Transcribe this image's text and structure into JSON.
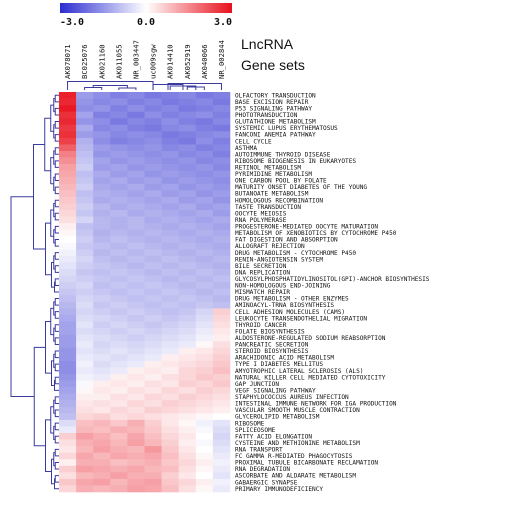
{
  "chart_data": {
    "type": "heatmap",
    "title": "",
    "legend": {
      "min_label": "-3.0",
      "mid_label": "0.0",
      "max_label": "3.0",
      "min_color": "#2b2bd0",
      "mid_color": "#ffffff",
      "max_color": "#e8101c"
    },
    "axis_titles": {
      "columns": "LncRNA",
      "rows": "Gene sets"
    },
    "columns": [
      "AK078071",
      "BC025076",
      "AK021160",
      "AK011055",
      "NR_003447",
      "uc009sgw",
      "AK014410",
      "AK052919",
      "AK040066",
      "NR_002844"
    ],
    "rows": [
      "OLFACTORY TRANSDUCTION",
      "BASE EXCISION REPAIR",
      "P53 SIGNALING PATHWAY",
      "PHOTOTRANSDUCTION",
      "GLUTATHIONE METABOLISM",
      "SYSTEMIC LUPUS ERYTHEMATOSUS",
      "FANCONI ANEMIA PATHWAY",
      "CELL CYCLE",
      "ASTHMA",
      "AUTOIMMUNE THYROID DISEASE",
      "RIBOSOME BIOGENESIS IN EUKARYOTES",
      "RETINOL METABOLISM",
      "PYRIMIDINE METABOLISM",
      "ONE CARBON POOL BY FOLATE",
      "MATURITY ONSET DIABETES OF THE YOUNG",
      "BUTANOATE METABOLISM",
      "HOMOLOGOUS RECOMBINATION",
      "TASTE TRANSDUCTION",
      "OOCYTE MEIOSIS",
      "RNA POLYMERASE",
      "PROGESTERONE-MEDIATED OOCYTE MATURATION",
      "METABOLISM OF XENOBIOTICS BY CYTOCHROME P450",
      "FAT DIGESTION AND ABSORPTION",
      "ALLOGRAFT REJECTION",
      "DRUG METABOLISM - CYTOCHROME P450",
      "RENIN-ANGIOTENSIN SYSTEM",
      "BILE SECRETION",
      "DNA REPLICATION",
      "GLYCOSYLPHOSPHATIDYLINOSITOL(GPI)-ANCHOR BIOSYNTHESIS",
      "NON-HOMOLOGOUS END-JOINING",
      "MISMATCH REPAIR",
      "DRUG METABOLISM - OTHER ENZYMES",
      "AMINOACYL-TRNA BIOSYNTHESIS",
      "CELL ADHESION MOLECULES (CAMS)",
      "LEUKOCYTE TRANSENDOTHELIAL MIGRATION",
      "THYROID CANCER",
      "FOLATE BIOSYNTHESIS",
      "ALDOSTERONE-REGULATED SODIUM REABSORPTION",
      "PANCREATIC SECRETION",
      "STEROID BIOSYNTHESIS",
      "ARACHIDONIC ACID METABOLISM",
      "TYPE I DIABETES MELLITUS",
      "AMYOTROPHIC LATERAL SCLEROSIS (ALS)",
      "NATURAL KILLER CELL MEDIATED CYTOTOXICITY",
      "GAP JUNCTION",
      "VEGF SIGNALING PATHWAY",
      "STAPHYLOCOCCUS AUREUS INFECTION",
      "INTESTINAL IMMUNE NETWORK FOR IGA PRODUCTION",
      "VASCULAR SMOOTH MUSCLE CONTRACTION",
      "GLYCEROLIPID METABOLISM",
      "RIBOSOME",
      "SPLICEOSOME",
      "FATTY ACID ELONGATION",
      "CYSTEINE AND METHIONINE METABOLISM",
      "RNA TRANSPORT",
      "FC GAMMA R-MEDIATED PHAGOCYTOSIS",
      "PROXIMAL TUBULE BICARBONATE RECLAMATION",
      "RNA DEGRADATION",
      "ASCORBATE AND ALDARATE METABOLISM",
      "GABAERGIC SYNAPSE",
      "PRIMARY IMMUNODEFICIENCY"
    ],
    "values": [
      [
        2.8,
        -1.4,
        -1.6,
        -1.8,
        -1.7,
        -1.9,
        -1.8,
        -1.7,
        -1.9,
        -1.8
      ],
      [
        2.7,
        -1.5,
        -1.7,
        -1.6,
        -1.8,
        -1.7,
        -1.9,
        -1.8,
        -1.7,
        -1.9
      ],
      [
        2.9,
        -1.6,
        -1.5,
        -1.8,
        -1.6,
        -1.8,
        -1.7,
        -1.9,
        -1.8,
        -1.7
      ],
      [
        2.6,
        -1.3,
        -1.8,
        -1.7,
        -1.9,
        -1.6,
        -1.8,
        -1.7,
        -1.6,
        -1.8
      ],
      [
        2.7,
        -1.5,
        -1.6,
        -1.9,
        -1.7,
        -1.8,
        -1.6,
        -1.8,
        -1.9,
        -1.7
      ],
      [
        2.5,
        -1.2,
        -1.7,
        -1.6,
        -1.8,
        -1.9,
        -1.7,
        -1.6,
        -1.8,
        -1.9
      ],
      [
        2.6,
        -1.4,
        -1.5,
        -1.7,
        -1.6,
        -1.7,
        -1.9,
        -1.8,
        -1.7,
        -1.6
      ],
      [
        2.4,
        -1.1,
        -1.6,
        -1.8,
        -1.7,
        -1.6,
        -1.8,
        -1.9,
        -1.6,
        -1.8
      ],
      [
        2.0,
        -1.0,
        -1.4,
        -1.5,
        -1.6,
        -1.5,
        -1.7,
        -1.6,
        -1.8,
        -1.7
      ],
      [
        1.6,
        -0.9,
        -1.5,
        -1.4,
        -1.5,
        -1.6,
        -1.5,
        -1.7,
        -1.6,
        -1.8
      ],
      [
        1.4,
        -0.8,
        -1.3,
        -1.5,
        -1.4,
        -1.5,
        -1.6,
        -1.5,
        -1.7,
        -1.6
      ],
      [
        1.2,
        -0.7,
        -1.4,
        -1.3,
        -1.5,
        -1.4,
        -1.5,
        -1.6,
        -1.5,
        -1.7
      ],
      [
        1.1,
        -0.9,
        -1.2,
        -1.4,
        -1.3,
        -1.5,
        -1.4,
        -1.5,
        -1.6,
        -1.5
      ],
      [
        1.0,
        -0.8,
        -1.3,
        -1.2,
        -1.4,
        -1.3,
        -1.5,
        -1.4,
        -1.5,
        -1.6
      ],
      [
        0.9,
        -0.7,
        -1.2,
        -1.3,
        -1.2,
        -1.4,
        -1.3,
        -1.5,
        -1.4,
        -1.5
      ],
      [
        0.8,
        -0.9,
        -1.1,
        -1.2,
        -1.3,
        -1.2,
        -1.4,
        -1.3,
        -1.5,
        -1.4
      ],
      [
        0.7,
        -0.8,
        -1.2,
        -1.1,
        -1.2,
        -1.3,
        -1.2,
        -1.4,
        -1.3,
        -1.5
      ],
      [
        0.6,
        -0.7,
        -1.0,
        -1.2,
        -1.1,
        -1.2,
        -1.3,
        -1.2,
        -1.4,
        -1.3
      ],
      [
        0.5,
        -0.8,
        -1.1,
        -1.0,
        -1.2,
        -1.1,
        -1.2,
        -1.3,
        -1.2,
        -1.4
      ],
      [
        0.4,
        -0.6,
        -1.0,
        -1.1,
        -1.0,
        -1.2,
        -1.1,
        -1.2,
        -1.3,
        -1.2
      ],
      [
        0.2,
        -0.9,
        -1.0,
        -1.1,
        -1.0,
        -1.1,
        -1.2,
        -1.1,
        -1.2,
        -1.3
      ],
      [
        0.1,
        -0.8,
        -1.1,
        -1.0,
        -1.1,
        -1.0,
        -1.1,
        -1.2,
        -1.1,
        -1.2
      ],
      [
        0.0,
        -0.7,
        -1.0,
        -0.9,
        -1.0,
        -1.1,
        -1.0,
        -1.1,
        -1.2,
        -1.1
      ],
      [
        -0.1,
        -0.8,
        -0.9,
        -1.0,
        -0.9,
        -1.0,
        -1.1,
        -1.0,
        -1.1,
        -1.2
      ],
      [
        -0.2,
        -0.7,
        -1.0,
        -0.9,
        -1.0,
        -0.9,
        -1.0,
        -1.1,
        -1.0,
        -1.1
      ],
      [
        -0.3,
        -0.6,
        -0.9,
        -1.0,
        -0.9,
        -1.0,
        -0.9,
        -1.0,
        -1.1,
        -1.0
      ],
      [
        -0.4,
        -0.7,
        -0.8,
        -0.9,
        -1.0,
        -0.9,
        -1.0,
        -0.9,
        -1.0,
        -1.1
      ],
      [
        -0.5,
        -0.8,
        -0.9,
        -0.8,
        -0.9,
        -1.0,
        -0.9,
        -1.0,
        -0.9,
        -1.0
      ],
      [
        -0.6,
        -0.7,
        -0.8,
        -0.9,
        -0.8,
        -0.9,
        -1.0,
        -0.9,
        -1.0,
        -0.9
      ],
      [
        -0.7,
        -0.6,
        -0.9,
        -0.8,
        -0.9,
        -0.8,
        -0.9,
        -1.0,
        -0.9,
        -1.0
      ],
      [
        -0.8,
        -0.7,
        -0.8,
        -0.9,
        -0.8,
        -0.9,
        -0.8,
        -0.9,
        -1.0,
        -0.9
      ],
      [
        -0.9,
        -0.6,
        -0.7,
        -0.8,
        -0.9,
        -0.8,
        -0.9,
        -0.8,
        -0.9,
        -1.0
      ],
      [
        -1.0,
        -0.5,
        -0.8,
        -0.7,
        -0.8,
        -0.9,
        -0.8,
        -0.9,
        -0.8,
        -0.9
      ],
      [
        -1.1,
        -0.6,
        -0.7,
        -0.8,
        -0.7,
        -0.8,
        -0.9,
        -0.8,
        -0.6,
        0.6
      ],
      [
        -1.2,
        -0.5,
        -0.6,
        -0.7,
        -0.8,
        -0.7,
        -0.8,
        -0.7,
        -0.5,
        0.5
      ],
      [
        -1.3,
        -0.4,
        -0.7,
        -0.6,
        -0.7,
        -0.8,
        -0.7,
        -0.6,
        -0.4,
        0.4
      ],
      [
        -1.3,
        -0.5,
        -0.6,
        -0.7,
        -0.6,
        -0.7,
        -0.6,
        -0.5,
        -0.3,
        0.3
      ],
      [
        -1.4,
        -0.4,
        -0.5,
        -0.6,
        -0.7,
        -0.6,
        -0.5,
        -0.4,
        -0.2,
        0.2
      ],
      [
        -1.4,
        -0.3,
        -0.6,
        -0.5,
        -0.6,
        -0.5,
        -0.4,
        -0.3,
        0.1,
        0.4
      ],
      [
        -1.5,
        -0.4,
        -0.5,
        -0.4,
        -0.5,
        -0.4,
        -0.3,
        0.2,
        0.3,
        0.5
      ],
      [
        -1.5,
        -0.3,
        -0.4,
        -0.5,
        -0.4,
        -0.3,
        0.2,
        0.3,
        0.4,
        0.6
      ],
      [
        -1.6,
        -0.2,
        -0.5,
        -0.4,
        -0.3,
        0.2,
        0.3,
        0.4,
        0.5,
        0.7
      ],
      [
        -1.6,
        -0.3,
        -0.4,
        -0.3,
        0.2,
        0.3,
        0.2,
        0.5,
        0.6,
        0.8
      ],
      [
        -1.5,
        -0.2,
        -0.3,
        0.2,
        0.3,
        0.2,
        0.4,
        0.5,
        0.7,
        0.6
      ],
      [
        -1.4,
        -0.1,
        0.2,
        0.3,
        0.2,
        0.4,
        0.3,
        0.6,
        0.5,
        0.7
      ],
      [
        -1.3,
        0.1,
        0.3,
        0.2,
        0.4,
        0.3,
        0.5,
        0.4,
        0.6,
        0.5
      ],
      [
        -1.2,
        0.2,
        0.2,
        0.4,
        0.3,
        0.5,
        0.4,
        0.6,
        0.5,
        0.4
      ],
      [
        -1.1,
        0.3,
        0.4,
        0.3,
        0.5,
        0.4,
        0.6,
        0.5,
        0.4,
        0.3
      ],
      [
        -1.0,
        0.4,
        0.3,
        0.5,
        0.4,
        0.6,
        0.5,
        0.4,
        0.3,
        0.2
      ],
      [
        -0.9,
        0.5,
        0.6,
        0.4,
        0.5,
        0.4,
        0.3,
        0.2,
        0.1,
        0.0
      ],
      [
        -0.5,
        0.8,
        0.9,
        0.7,
        1.0,
        0.6,
        0.3,
        0.1,
        -0.2,
        -0.4
      ],
      [
        -0.3,
        0.9,
        0.8,
        1.0,
        0.9,
        0.7,
        0.4,
        0.2,
        -0.1,
        -0.5
      ],
      [
        0.6,
        1.2,
        1.0,
        0.8,
        1.1,
        0.8,
        0.5,
        0.3,
        0.0,
        -0.6
      ],
      [
        0.4,
        1.0,
        1.1,
        0.9,
        1.2,
        0.9,
        0.6,
        0.2,
        -0.1,
        -0.5
      ],
      [
        0.3,
        0.9,
        1.2,
        1.0,
        0.9,
        1.3,
        0.7,
        0.3,
        0.0,
        -0.4
      ],
      [
        0.5,
        1.1,
        0.9,
        1.1,
        1.0,
        1.1,
        0.8,
        0.4,
        0.1,
        -0.3
      ],
      [
        0.2,
        1.0,
        1.0,
        0.8,
        0.9,
        1.0,
        0.7,
        0.5,
        0.2,
        -0.2
      ],
      [
        0.6,
        1.2,
        1.1,
        1.0,
        1.1,
        0.9,
        0.8,
        0.4,
        0.1,
        -0.3
      ],
      [
        0.4,
        0.9,
        1.0,
        1.2,
        1.0,
        1.0,
        0.6,
        0.3,
        0.0,
        -0.4
      ],
      [
        0.7,
        1.1,
        1.2,
        0.9,
        1.1,
        1.2,
        0.7,
        0.5,
        0.2,
        -0.2
      ],
      [
        0.5,
        1.0,
        0.9,
        1.0,
        1.2,
        1.1,
        0.8,
        0.4,
        0.1,
        -0.3
      ]
    ]
  }
}
